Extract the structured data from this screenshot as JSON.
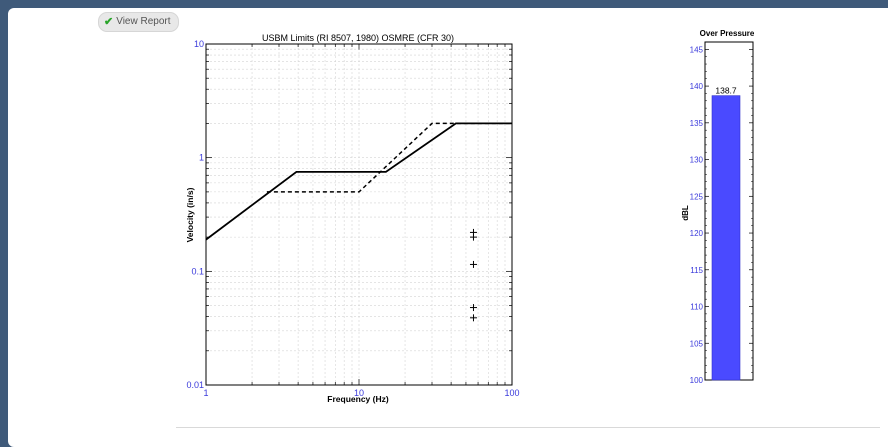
{
  "toolbar": {
    "view_report_label": "View Report",
    "view_report_icon": "check-icon"
  },
  "chart_data": [
    {
      "type": "line",
      "title": "USBM Limits (RI 8507, 1980) OSMRE (CFR 30)",
      "xlabel": "Frequency (Hz)",
      "ylabel": "Velocity (in/s)",
      "x_scale": "log",
      "y_scale": "log",
      "xlim": [
        1,
        100
      ],
      "ylim": [
        0.01,
        10
      ],
      "x_ticks": [
        "1",
        "10",
        "100"
      ],
      "y_ticks": [
        "0.01",
        "0.1",
        "1",
        "10"
      ],
      "grid": true,
      "series": [
        {
          "style": "solid",
          "x": [
            1,
            3.9,
            15,
            43,
            100
          ],
          "y": [
            0.19,
            0.75,
            0.75,
            2.0,
            2.0
          ]
        },
        {
          "style": "dashed",
          "x": [
            2.5,
            10,
            30,
            100
          ],
          "y": [
            0.5,
            0.5,
            2.0,
            2.0
          ]
        },
        {
          "style": "markers",
          "marker": "+",
          "x": [
            56,
            56,
            56,
            56,
            56
          ],
          "y": [
            0.22,
            0.2,
            0.115,
            0.048,
            0.039
          ]
        }
      ]
    },
    {
      "type": "bar",
      "title": "Over Pressure",
      "ylabel": "dBL",
      "ylim": [
        100,
        146
      ],
      "y_ticks": [
        "100",
        "105",
        "110",
        "115",
        "120",
        "125",
        "130",
        "135",
        "140",
        "145"
      ],
      "values": [
        138.7
      ],
      "data_labels": [
        "138.7"
      ],
      "bar_color": "#4a4aff"
    }
  ]
}
